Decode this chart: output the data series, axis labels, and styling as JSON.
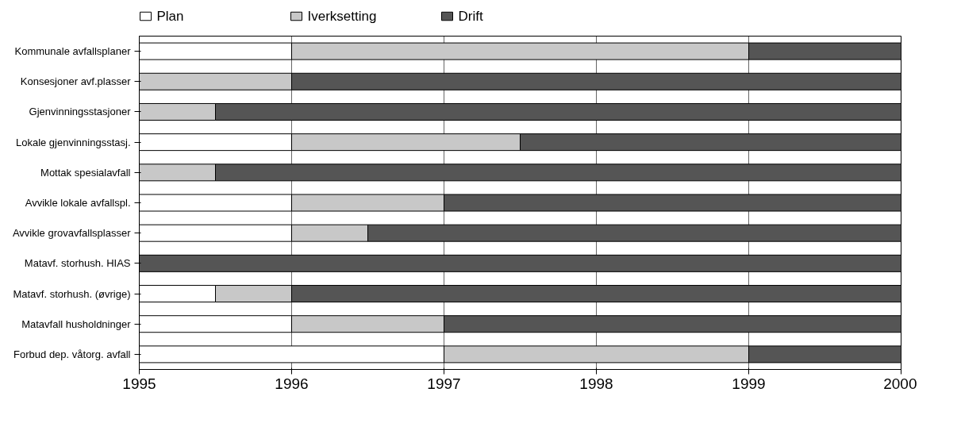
{
  "chart_data": {
    "type": "bar",
    "orientation": "horizontal",
    "categories": [
      "Kommunale avfallsplaner",
      "Konsesjoner avf.plasser",
      "Gjenvinningsstasjoner",
      "Lokale gjenvinningsstasj.",
      "Mottak spesialavfall",
      "Avvikle lokale avfallspl.",
      "Avvikle grovavfallsplasser",
      "Matavf. storhush. HIAS",
      "Matavf. storhush. (øvrige)",
      "Matavfall husholdninger",
      "Forbud dep. våtorg. avfall"
    ],
    "series": [
      {
        "name": "Plan",
        "color": "#ffffff",
        "values": [
          1,
          null,
          null,
          1,
          null,
          1,
          1,
          null,
          0.5,
          1,
          2
        ],
        "base": [
          1995,
          null,
          null,
          1995,
          null,
          1995,
          1995,
          null,
          1995,
          1995,
          1995
        ]
      },
      {
        "name": "Iverksetting",
        "color": "#c8c8c8",
        "values": [
          3,
          1,
          0.5,
          1.5,
          0.5,
          1,
          0.5,
          null,
          0.5,
          1,
          2
        ],
        "base": [
          1996,
          1995,
          1995,
          1996,
          1995,
          1996,
          1996,
          null,
          1995.5,
          1996,
          1997
        ]
      },
      {
        "name": "Drift",
        "color": "#555555",
        "values": [
          1,
          4,
          4.5,
          2.5,
          4.5,
          3,
          3.5,
          5,
          4,
          3,
          1
        ],
        "base": [
          1999,
          1996,
          1995.5,
          1997.5,
          1995.5,
          1997,
          1996.5,
          1995,
          1996,
          1997,
          1999
        ]
      }
    ],
    "xlim": [
      1995,
      2000
    ],
    "xticks": [
      1995,
      1996,
      1997,
      1998,
      1999,
      2000
    ],
    "grid": "x",
    "legend": "top left"
  }
}
